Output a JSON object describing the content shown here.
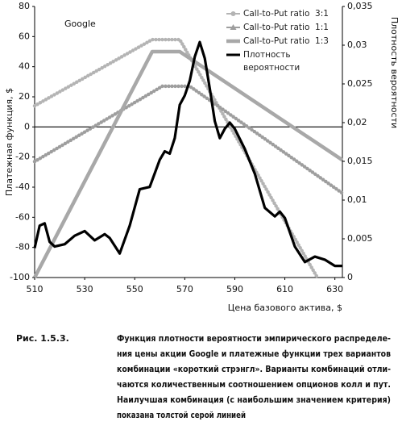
{
  "chart_data": {
    "type": "line",
    "annotation": "Google",
    "ylabel": "Платежная функция, $",
    "y2label": "Плотность вероятности",
    "xlabel": "Цена базового актива, $",
    "xlim": [
      510,
      633
    ],
    "xticks": [
      510,
      530,
      550,
      570,
      590,
      610,
      630
    ],
    "ylim": [
      -100,
      80
    ],
    "yticks": [
      -100,
      -80,
      -60,
      -40,
      -20,
      0,
      20,
      40,
      60,
      80
    ],
    "y2lim": [
      0,
      0.035
    ],
    "y2ticks": [
      0,
      {
        "value": 0.005,
        "label": "0,005"
      },
      {
        "value": 0.01,
        "label": "0,01"
      },
      {
        "value": 0.015,
        "label": "0,015"
      },
      {
        "value": 0.02,
        "label": "0,02"
      },
      {
        "value": 0.025,
        "label": "0,025"
      },
      {
        "value": 0.03,
        "label": "0,03"
      },
      {
        "value": 0.035,
        "label": "0,035"
      }
    ],
    "legend": "top-right",
    "series": [
      {
        "name": "Call-to-Put ratio  3:1",
        "color": "#b4b4b4",
        "marker": "circle",
        "x": [
          510,
          557,
          568,
          623
        ],
        "values": [
          14,
          58,
          58,
          -100
        ]
      },
      {
        "name": "Call-to-Put ratio  1:1",
        "color": "#9e9e9e",
        "marker": "triangle",
        "x": [
          510,
          561,
          572,
          633
        ],
        "values": [
          -23,
          27,
          27,
          -44
        ]
      },
      {
        "name": "Call-to-Put ratio  1:3",
        "color": "#a8a8a8",
        "marker": "none",
        "x": [
          510,
          557,
          568,
          633
        ],
        "values": [
          -100,
          50,
          50,
          -22
        ]
      },
      {
        "name": "Плотность вероятности",
        "color": "#000000",
        "marker": "none",
        "axis": "y2",
        "x": [
          510,
          512,
          514,
          516,
          518,
          522,
          526,
          530,
          534,
          538,
          540,
          544,
          548,
          552,
          556,
          560,
          562,
          564,
          566,
          568,
          570,
          572,
          574,
          576,
          578,
          580,
          582,
          584,
          586,
          588,
          590,
          594,
          598,
          602,
          606,
          608,
          610,
          614,
          618,
          622,
          626,
          630,
          633
        ],
        "values": [
          0.0038,
          0.0067,
          0.007,
          0.0046,
          0.004,
          0.0043,
          0.0054,
          0.006,
          0.0048,
          0.0056,
          0.0051,
          0.0031,
          0.0067,
          0.0114,
          0.0117,
          0.0152,
          0.0163,
          0.016,
          0.018,
          0.0223,
          0.0235,
          0.0254,
          0.0285,
          0.0304,
          0.0283,
          0.0244,
          0.0202,
          0.018,
          0.0192,
          0.02,
          0.0192,
          0.0166,
          0.0134,
          0.009,
          0.0079,
          0.0085,
          0.0077,
          0.004,
          0.002,
          0.0027,
          0.0023,
          0.0015,
          0.0015
        ]
      }
    ]
  },
  "caption": {
    "label": "Рис. 1.5.3.",
    "lines": [
      "Функция плотности вероятности эмпирического распределе-",
      "ния цены акции Google и платежные функции трех вариантов",
      "комбинации «короткий стрэнгл». Варианты комбинаций отли-",
      "чаются количественным соотношением опционов колл и пут.",
      "Наилучшая комбинация (с наибольшим значением критерия)",
      "показана толстой серой линией"
    ]
  }
}
